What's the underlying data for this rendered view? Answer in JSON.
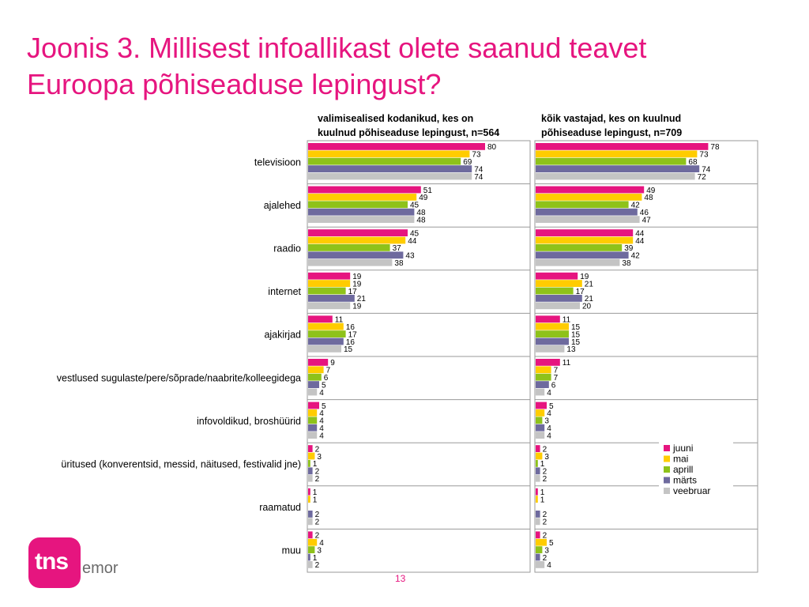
{
  "title_line1": "Joonis 3. Millisest infoallikast olete saanud teavet",
  "title_line2": "Euroopa põhiseaduse lepingust?",
  "page_number": "13",
  "logo": {
    "tns": "tns",
    "emor": "emor"
  },
  "colors": {
    "juuni": "#e6157f",
    "mai": "#ffcc00",
    "aprill": "#8ec21a",
    "märts": "#6e6a9e",
    "veebruar": "#c4c4c4"
  },
  "chart_data": [
    {
      "type": "bar",
      "title_line1": "valimisealised kodanikud, kes on",
      "title_line2": "kuulnud põhiseaduse lepingust, n=564",
      "categories": [
        "televisioon",
        "ajalehed",
        "raadio",
        "internet",
        "ajakirjad",
        "vestlused sugulaste/pere/sõprade/naabrite/kolleegidega",
        "infovoldikud, broshüürid",
        "üritused (konverentsid, messid, näitused, festivalid jne)",
        "raamatud",
        "muu"
      ],
      "series": [
        {
          "name": "juuni",
          "values": [
            80,
            51,
            45,
            19,
            11,
            9,
            5,
            2,
            1,
            2
          ]
        },
        {
          "name": "mai",
          "values": [
            73,
            49,
            44,
            19,
            16,
            7,
            4,
            3,
            1,
            4
          ]
        },
        {
          "name": "aprill",
          "values": [
            69,
            45,
            37,
            17,
            17,
            6,
            4,
            1,
            null,
            3
          ]
        },
        {
          "name": "märts",
          "values": [
            74,
            48,
            43,
            21,
            16,
            5,
            4,
            2,
            2,
            1
          ]
        },
        {
          "name": "veebruar",
          "values": [
            74,
            48,
            38,
            19,
            15,
            4,
            4,
            2,
            2,
            2
          ]
        }
      ],
      "xlim": [
        0,
        100
      ]
    },
    {
      "type": "bar",
      "title_line1": "kõik vastajad, kes on kuulnud",
      "title_line2": "põhiseaduse lepingust, n=709",
      "categories": [
        "televisioon",
        "ajalehed",
        "raadio",
        "internet",
        "ajakirjad",
        "vestlused sugulaste/pere/sõprade/naabrite/kolleegidega",
        "infovoldikud, broshüürid",
        "üritused (konverentsid, messid, näitused, festivalid jne)",
        "raamatud",
        "muu"
      ],
      "series": [
        {
          "name": "juuni",
          "values": [
            78,
            49,
            44,
            19,
            11,
            11,
            5,
            2,
            1,
            2
          ]
        },
        {
          "name": "mai",
          "values": [
            73,
            48,
            44,
            21,
            15,
            7,
            4,
            3,
            1,
            5
          ]
        },
        {
          "name": "aprill",
          "values": [
            68,
            42,
            39,
            17,
            15,
            7,
            3,
            1,
            null,
            3
          ]
        },
        {
          "name": "märts",
          "values": [
            74,
            46,
            42,
            21,
            15,
            6,
            4,
            2,
            2,
            2
          ]
        },
        {
          "name": "veebruar",
          "values": [
            72,
            47,
            38,
            20,
            13,
            4,
            4,
            2,
            2,
            4
          ]
        }
      ],
      "xlim": [
        0,
        100
      ],
      "legend_position": "bottom-right"
    }
  ]
}
